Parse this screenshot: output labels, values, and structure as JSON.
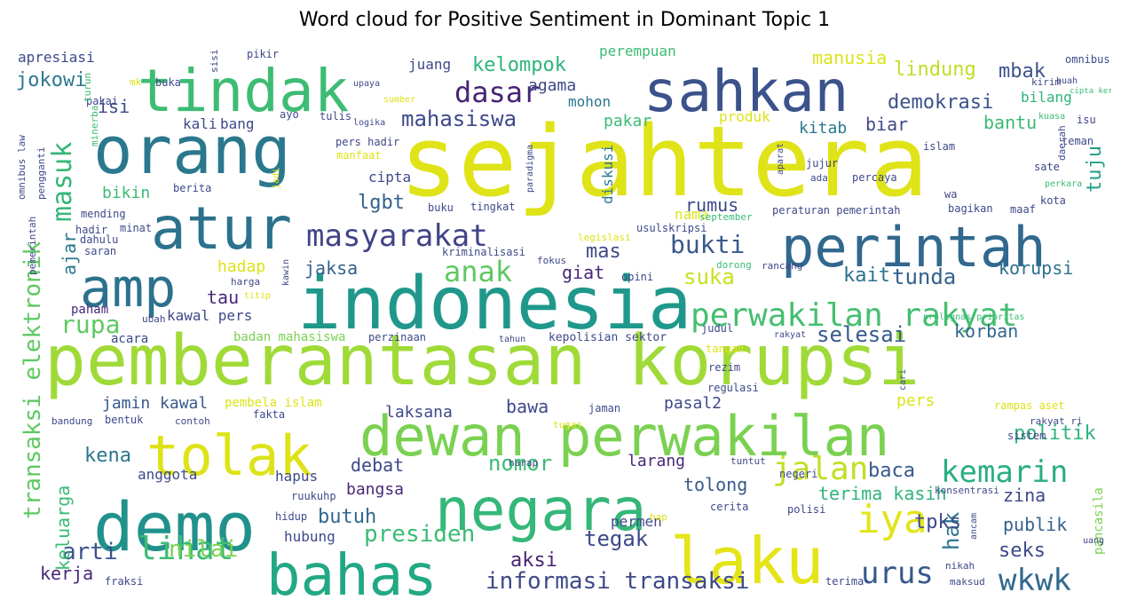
{
  "title": "Word cloud for Positive Sentiment in Dominant Topic 1",
  "words": [
    {
      "text": "sejahtera",
      "color": "#dfe318"
    },
    {
      "text": "pemberantasan korupsi",
      "color": "#a0da39"
    },
    {
      "text": "indonesia",
      "color": "#1f988b"
    },
    {
      "text": "orang",
      "color": "#2a788e"
    },
    {
      "text": "dewan perwakilan",
      "color": "#7ad151"
    },
    {
      "text": "negara",
      "color": "#35b779"
    },
    {
      "text": "demo",
      "color": "#21918c"
    },
    {
      "text": "bahas",
      "color": "#22a884"
    },
    {
      "text": "tindak",
      "color": "#3dbc74"
    },
    {
      "text": "sahkan",
      "color": "#3b528b"
    },
    {
      "text": "perintah",
      "color": "#31688e"
    },
    {
      "text": "tolak",
      "color": "#dde318"
    },
    {
      "text": "laku",
      "color": "#e5e419"
    },
    {
      "text": "atur",
      "color": "#2c728e"
    },
    {
      "text": "amp",
      "color": "#2c718e"
    },
    {
      "text": "masyarakat",
      "color": "#414487"
    },
    {
      "text": "perwakilan rakyat",
      "color": "#44bf70"
    },
    {
      "text": "jalan",
      "color": "#c2df23"
    },
    {
      "text": "kemarin",
      "color": "#29af7f"
    },
    {
      "text": "iya",
      "color": "#e2e418"
    },
    {
      "text": "dasar",
      "color": "#482475"
    },
    {
      "text": "anak",
      "color": "#5ec962"
    },
    {
      "text": "urus",
      "color": "#38598c"
    },
    {
      "text": "wkwk",
      "color": "#31688e"
    },
    {
      "text": "lihat",
      "color": "#3dbc74"
    },
    {
      "text": "masuk",
      "color": "#35b779"
    },
    {
      "text": "informasi transaksi",
      "color": "#3e4a89"
    },
    {
      "text": "transaksi elektronik",
      "color": "#5ec962"
    },
    {
      "text": "presiden",
      "color": "#3bbb75"
    },
    {
      "text": "nomor",
      "color": "#3dbc74"
    },
    {
      "text": "politik",
      "color": "#2fb47c"
    },
    {
      "text": "kelompok",
      "color": "#2fb47c"
    },
    {
      "text": "mahasiswa",
      "color": "#3e4989"
    },
    {
      "text": "lindung",
      "color": "#c0df25"
    },
    {
      "text": "demokrasi",
      "color": "#3b528b"
    },
    {
      "text": "rupa",
      "color": "#5ec962"
    },
    {
      "text": "suka",
      "color": "#c8e020"
    },
    {
      "text": "selesai",
      "color": "#375a8c"
    },
    {
      "text": "tunda",
      "color": "#34618d"
    },
    {
      "text": "bukti",
      "color": "#38598c"
    },
    {
      "text": "nilai",
      "color": "#7ad151"
    },
    {
      "text": "tegak",
      "color": "#3e4989"
    },
    {
      "text": "hak",
      "color": "#2b758e"
    },
    {
      "text": "seks",
      "color": "#3e4989"
    },
    {
      "text": "jokowi",
      "color": "#2a788e"
    },
    {
      "text": "mbak",
      "color": "#3b528b"
    },
    {
      "text": "tuju",
      "color": "#1fa088"
    },
    {
      "text": "kerja",
      "color": "#482878"
    },
    {
      "text": "arti",
      "color": "#3b528b"
    },
    {
      "text": "aksi",
      "color": "#482475"
    },
    {
      "text": "kena",
      "color": "#2a768e"
    },
    {
      "text": "terima kasih",
      "color": "#2fb47c"
    },
    {
      "text": "zina",
      "color": "#3e4989"
    },
    {
      "text": "publik",
      "color": "#34618d"
    },
    {
      "text": "tpks",
      "color": "#3e4989"
    },
    {
      "text": "butuh",
      "color": "#31688e"
    },
    {
      "text": "baca",
      "color": "#38598c"
    },
    {
      "text": "tolong",
      "color": "#38598c"
    },
    {
      "text": "korban",
      "color": "#31688e"
    },
    {
      "text": "korupsi",
      "color": "#2c718e"
    },
    {
      "text": "kait",
      "color": "#2c718e"
    },
    {
      "text": "jaksa",
      "color": "#34618d"
    },
    {
      "text": "lgbt",
      "color": "#34618d"
    },
    {
      "text": "rumus",
      "color": "#3e4989"
    },
    {
      "text": "mas",
      "color": "#3e4989"
    },
    {
      "text": "giat",
      "color": "#482878"
    },
    {
      "text": "tau",
      "color": "#482878"
    },
    {
      "text": "keluarga",
      "color": "#3bbb75"
    },
    {
      "text": "ajar",
      "color": "#2a788e"
    },
    {
      "text": "jamin kawal",
      "color": "#38598c"
    },
    {
      "text": "pasal2",
      "color": "#3e4989"
    },
    {
      "text": "bawa",
      "color": "#3e4989"
    },
    {
      "text": "laksana",
      "color": "#3e4989"
    },
    {
      "text": "debat",
      "color": "#3e4989"
    },
    {
      "text": "bangsa",
      "color": "#482878"
    },
    {
      "text": "larang",
      "color": "#482878"
    },
    {
      "text": "isi",
      "color": "#3e4989"
    },
    {
      "text": "kitab",
      "color": "#2a788e"
    },
    {
      "text": "biar",
      "color": "#3e4989"
    },
    {
      "text": "bantu",
      "color": "#3bbb75"
    },
    {
      "text": "pakar",
      "color": "#3bbb75"
    },
    {
      "text": "agama",
      "color": "#3e4989"
    },
    {
      "text": "mohon",
      "color": "#2a788e"
    },
    {
      "text": "juang",
      "color": "#3e4989"
    },
    {
      "text": "manusia",
      "color": "#dde318"
    },
    {
      "text": "bilang",
      "color": "#2fb47c"
    },
    {
      "text": "hadap",
      "color": "#dde318"
    },
    {
      "text": "cipta",
      "color": "#3e4989"
    },
    {
      "text": "bikin",
      "color": "#3bbb75"
    },
    {
      "text": "kali",
      "color": "#3e4989"
    },
    {
      "text": "bang",
      "color": "#3e4989"
    },
    {
      "text": "diskusi",
      "color": "#2a788e"
    },
    {
      "text": "apresiasi",
      "color": "#3e4989"
    },
    {
      "text": "perempuan",
      "color": "#3bbb75"
    },
    {
      "text": "produk",
      "color": "#dde318"
    },
    {
      "text": "nama",
      "color": "#dde318"
    },
    {
      "text": "kawal pers",
      "color": "#3e4989"
    },
    {
      "text": "paham",
      "color": "#482878"
    },
    {
      "text": "acara",
      "color": "#3e4989"
    },
    {
      "text": "anggota",
      "color": "#3e4989"
    },
    {
      "text": "hapus",
      "color": "#3e4989"
    },
    {
      "text": "hubung",
      "color": "#3e4989"
    },
    {
      "text": "permen",
      "color": "#3e4989"
    },
    {
      "text": "pers",
      "color": "#dde318"
    },
    {
      "text": "pembela islam",
      "color": "#dde318"
    },
    {
      "text": "badan mahasiswa",
      "color": "#7ad151"
    },
    {
      "text": "kepolisian sektor",
      "color": "#3e4989"
    },
    {
      "text": "fakta",
      "color": "#3e4989"
    },
    {
      "text": "pancasila",
      "color": "#7ad151"
    },
    {
      "text": "peraturan pemerintah",
      "color": "#3e4989"
    },
    {
      "text": "omnibus",
      "color": "#3e4989"
    },
    {
      "text": "omnibus law",
      "color": "#3e4989"
    },
    {
      "text": "pengganti",
      "color": "#3e4989"
    },
    {
      "text": "pemerintah",
      "color": "#3e4989"
    },
    {
      "text": "pikir",
      "color": "#3e4989"
    },
    {
      "text": "sisi",
      "color": "#3e4989"
    },
    {
      "text": "buka",
      "color": "#3e4989"
    },
    {
      "text": "mk",
      "color": "#dde318"
    },
    {
      "text": "upaya",
      "color": "#3e4989"
    },
    {
      "text": "pakai",
      "color": "#3e4989"
    },
    {
      "text": "turun",
      "color": "#3bbb75"
    },
    {
      "text": "minerba",
      "color": "#3bbb75"
    },
    {
      "text": "sumber",
      "color": "#dde318"
    },
    {
      "text": "tulis",
      "color": "#3e4989"
    },
    {
      "text": "logika",
      "color": "#3e4989"
    },
    {
      "text": "ayo",
      "color": "#3e4989"
    },
    {
      "text": "kirim",
      "color": "#3e4989"
    },
    {
      "text": "buah",
      "color": "#3e4989"
    },
    {
      "text": "cipta kerja",
      "color": "#3bbb75"
    },
    {
      "text": "kuasa",
      "color": "#3bbb75"
    },
    {
      "text": "isu",
      "color": "#3e4989"
    },
    {
      "text": "teman",
      "color": "#3e4989"
    },
    {
      "text": "daerah",
      "color": "#3e4989"
    },
    {
      "text": "pers hadir",
      "color": "#3e4989"
    },
    {
      "text": "manfaat",
      "color": "#dde318"
    },
    {
      "text": "paradigma",
      "color": "#3e4989"
    },
    {
      "text": "jadi",
      "color": "#dde318"
    },
    {
      "text": "aparat",
      "color": "#3e4989"
    },
    {
      "text": "jujur",
      "color": "#3e4989"
    },
    {
      "text": "islam",
      "color": "#3e4989"
    },
    {
      "text": "sate",
      "color": "#3e4989"
    },
    {
      "text": "perkara",
      "color": "#3bbb75"
    },
    {
      "text": "ada",
      "color": "#3e4989"
    },
    {
      "text": "percaya",
      "color": "#3e4989"
    },
    {
      "text": "wa",
      "color": "#3e4989"
    },
    {
      "text": "kota",
      "color": "#3e4989"
    },
    {
      "text": "berita",
      "color": "#3e4989"
    },
    {
      "text": "buku",
      "color": "#3e4989"
    },
    {
      "text": "tingkat",
      "color": "#3e4989"
    },
    {
      "text": "bagikan",
      "color": "#3e4989"
    },
    {
      "text": "maaf",
      "color": "#3e4989"
    },
    {
      "text": "mending",
      "color": "#3e4989"
    },
    {
      "text": "hadir",
      "color": "#3e4989"
    },
    {
      "text": "minat",
      "color": "#3e4989"
    },
    {
      "text": "usulskripsi",
      "color": "#3e4989"
    },
    {
      "text": "september",
      "color": "#3bbb75"
    },
    {
      "text": "dahulu",
      "color": "#3e4989"
    },
    {
      "text": "saran",
      "color": "#3e4989"
    },
    {
      "text": "legislasi",
      "color": "#dde318"
    },
    {
      "text": "kriminalisasi",
      "color": "#3e4989"
    },
    {
      "text": "harga",
      "color": "#3e4989"
    },
    {
      "text": "kawin",
      "color": "#3e4989"
    },
    {
      "text": "fokus",
      "color": "#3e4989"
    },
    {
      "text": "dorong",
      "color": "#3bbb75"
    },
    {
      "text": "rancang",
      "color": "#3e4989"
    },
    {
      "text": "opini",
      "color": "#3e4989"
    },
    {
      "text": "titip",
      "color": "#dde318"
    },
    {
      "text": "ubah",
      "color": "#3e4989"
    },
    {
      "text": "prolegnas prioritas",
      "color": "#3bbb75"
    },
    {
      "text": "judul",
      "color": "#3e4989"
    },
    {
      "text": "perzinaan",
      "color": "#3e4989"
    },
    {
      "text": "tahun",
      "color": "#3e4989"
    },
    {
      "text": "tangan",
      "color": "#dde318"
    },
    {
      "text": "rakyat",
      "color": "#3e4989"
    },
    {
      "text": "rezim",
      "color": "#3e4989"
    },
    {
      "text": "cari",
      "color": "#3e4989"
    },
    {
      "text": "regulasi",
      "color": "#3e4989"
    },
    {
      "text": "bandung",
      "color": "#3e4989"
    },
    {
      "text": "bentuk",
      "color": "#3e4989"
    },
    {
      "text": "contoh",
      "color": "#3e4989"
    },
    {
      "text": "jaman",
      "color": "#3e4989"
    },
    {
      "text": "tugas",
      "color": "#dde318"
    },
    {
      "text": "rampas aset",
      "color": "#dde318"
    },
    {
      "text": "sistem",
      "color": "#3e4989"
    },
    {
      "text": "rakyat ri",
      "color": "#3e4989"
    },
    {
      "text": "harap",
      "color": "#3e4989"
    },
    {
      "text": "tuntut",
      "color": "#3e4989"
    },
    {
      "text": "ruukuhp",
      "color": "#3e4989"
    },
    {
      "text": "negeri",
      "color": "#3e4989"
    },
    {
      "text": "konsentrasi",
      "color": "#3e4989"
    },
    {
      "text": "hidup",
      "color": "#3e4989"
    },
    {
      "text": "cerita",
      "color": "#3e4989"
    },
    {
      "text": "polisi",
      "color": "#3e4989"
    },
    {
      "text": "ancam",
      "color": "#3e4989"
    },
    {
      "text": "uang",
      "color": "#3e4989"
    },
    {
      "text": "hap",
      "color": "#dde318"
    },
    {
      "text": "nikah",
      "color": "#3e4989"
    },
    {
      "text": "maksud",
      "color": "#3e4989"
    },
    {
      "text": "fraksi",
      "color": "#3e4989"
    },
    {
      "text": "terima",
      "color": "#3e4989"
    }
  ]
}
